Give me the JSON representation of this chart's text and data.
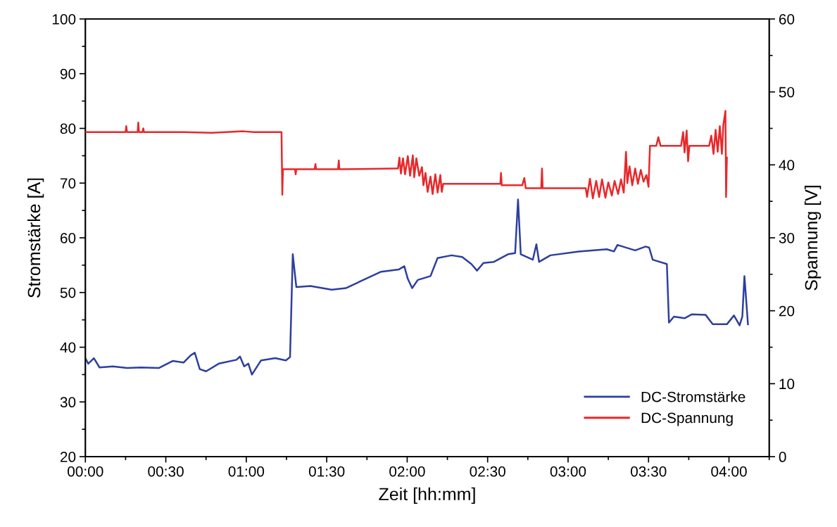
{
  "chart_data": {
    "type": "line",
    "xlabel": "Zeit [hh:mm]",
    "ylabel": "Stromstärke [A]",
    "y2label": "Spannung [V]",
    "xlim": [
      0,
      4.25
    ],
    "xticks": [
      {
        "value": 0,
        "label": "00:00"
      },
      {
        "value": 0.5,
        "label": "00:30"
      },
      {
        "value": 1,
        "label": "01:00"
      },
      {
        "value": 1.5,
        "label": "01:30"
      },
      {
        "value": 2,
        "label": "02:00"
      },
      {
        "value": 2.5,
        "label": "02:30"
      },
      {
        "value": 3,
        "label": "03:00"
      },
      {
        "value": 3.5,
        "label": "03:30"
      },
      {
        "value": 4,
        "label": "04:00"
      }
    ],
    "ylim": [
      20,
      100
    ],
    "yticks": [
      20,
      30,
      40,
      50,
      60,
      70,
      80,
      90,
      100
    ],
    "y2lim": [
      0,
      60
    ],
    "y2ticks": [
      0,
      10,
      20,
      30,
      40,
      50,
      60
    ],
    "grid": false,
    "legend": "bottom right",
    "marker": "none",
    "line_style": "solid",
    "series": [
      {
        "name": "DC-Stromstärke",
        "color": "#2e3f9e",
        "x": [
          0,
          0.018,
          0.053,
          0.088,
          0.171,
          0.259,
          0.346,
          0.456,
          0.544,
          0.61,
          0.654,
          0.68,
          0.711,
          0.75,
          0.829,
          0.939,
          0.961,
          0.987,
          1.013,
          1.035,
          1.092,
          1.18,
          1.246,
          1.272,
          1.289,
          1.311,
          1.399,
          1.531,
          1.618,
          1.706,
          1.838,
          1.947,
          1.982,
          2.004,
          2.031,
          2.066,
          2.145,
          2.189,
          2.276,
          2.342,
          2.399,
          2.434,
          2.474,
          2.539,
          2.627,
          2.671,
          2.689,
          2.706,
          2.781,
          2.803,
          2.82,
          2.89,
          3.066,
          3.241,
          3.285,
          3.307,
          3.417,
          3.482,
          3.504,
          3.526,
          3.614,
          3.627,
          3.658,
          3.724,
          3.768,
          3.855,
          3.899,
          3.987,
          4.031,
          4.066,
          4.083,
          4.096,
          4.118
        ],
        "values": [
          38,
          37,
          38,
          36.3,
          36.5,
          36.2,
          36.3,
          36.2,
          37.5,
          37.2,
          38.5,
          39,
          36,
          35.6,
          37,
          37.7,
          38.3,
          36.5,
          37,
          35,
          37.6,
          38,
          37.6,
          38.2,
          57,
          51,
          51.2,
          50.5,
          50.8,
          52,
          53.8,
          54.2,
          54.8,
          52.5,
          50.8,
          52.3,
          53,
          56.3,
          56.8,
          56.5,
          55.2,
          54,
          55.4,
          55.6,
          57,
          57.2,
          67,
          57,
          56,
          58.8,
          55.6,
          56.8,
          57.5,
          57.9,
          57.5,
          58.7,
          57.7,
          58.4,
          58.2,
          56,
          55.2,
          44.5,
          45.6,
          45.3,
          46,
          45.9,
          44.2,
          44.2,
          45.8,
          44,
          45.6,
          53,
          44.2
        ]
      },
      {
        "name": "DC-Spannung",
        "color": "#e8282b",
        "axis": "y2",
        "x": [
          0,
          0.127,
          0.25,
          0.254,
          0.259,
          0.325,
          0.329,
          0.333,
          0.355,
          0.36,
          0.364,
          0.61,
          0.785,
          0.982,
          1.048,
          1.219,
          1.224,
          1.228,
          1.303,
          1.307,
          1.311,
          1.425,
          1.43,
          1.434,
          1.57,
          1.575,
          1.579,
          1.925,
          1.943,
          1.952,
          1.961,
          1.974,
          1.987,
          2.004,
          2.018,
          2.035,
          2.044,
          2.057,
          2.075,
          2.092,
          2.101,
          2.114,
          2.127,
          2.145,
          2.158,
          2.175,
          2.189,
          2.206,
          2.215,
          2.224,
          2.364,
          2.579,
          2.583,
          2.588,
          2.715,
          2.728,
          2.737,
          2.833,
          2.838,
          2.842,
          3.11,
          3.118,
          3.136,
          3.154,
          3.175,
          3.193,
          3.211,
          3.232,
          3.25,
          3.272,
          3.289,
          3.311,
          3.329,
          3.346,
          3.36,
          3.368,
          3.382,
          3.399,
          3.417,
          3.434,
          3.452,
          3.469,
          3.487,
          3.5,
          3.509,
          3.548,
          3.561,
          3.575,
          3.702,
          3.715,
          3.724,
          3.737,
          3.746,
          3.754,
          3.877,
          3.89,
          3.904,
          3.917,
          3.93,
          3.943,
          3.956,
          3.965,
          3.978,
          3.982,
          3.987
        ],
        "values": [
          44.5,
          44.5,
          44.5,
          45.3,
          44.5,
          44.5,
          45.8,
          44.5,
          44.5,
          45,
          44.5,
          44.5,
          44.4,
          44.6,
          44.5,
          44.5,
          35.9,
          39.4,
          39.4,
          38.7,
          39.4,
          39.4,
          40.1,
          39.4,
          39.4,
          40.6,
          39.4,
          39.5,
          39.5,
          41,
          38.8,
          40.9,
          38.7,
          41.2,
          38.5,
          41.3,
          38.3,
          40.9,
          38.5,
          39.7,
          37.2,
          38.9,
          36.3,
          38.4,
          36,
          38.7,
          36.2,
          38.6,
          36.3,
          37.4,
          37.4,
          37.4,
          38.9,
          37.2,
          37.2,
          38.2,
          36.8,
          36.8,
          39.5,
          36.8,
          36.8,
          35.6,
          38.1,
          35.4,
          37.8,
          35.6,
          38,
          35.5,
          37.6,
          35.8,
          37.8,
          36,
          38,
          36.2,
          41.8,
          37.5,
          39.8,
          37.2,
          39.5,
          37.4,
          39.3,
          37.7,
          38.6,
          37,
          42.6,
          42.6,
          43.8,
          42.6,
          42.6,
          44.5,
          41.7,
          44.7,
          40.5,
          42.6,
          42.6,
          44,
          41.5,
          44.8,
          41.8,
          45.3,
          41.5,
          45.5,
          47.4,
          35.6,
          41
        ]
      }
    ]
  }
}
